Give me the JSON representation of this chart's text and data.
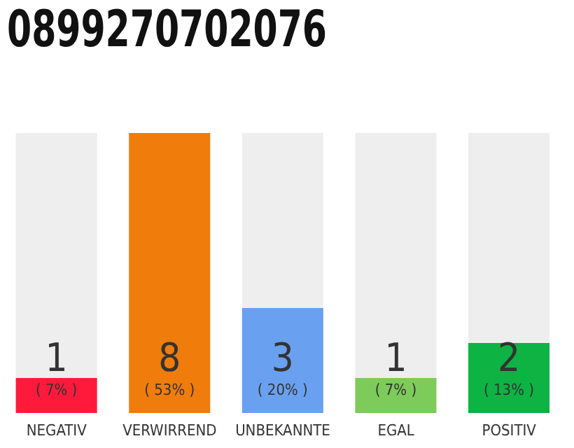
{
  "chart_data": {
    "type": "bar",
    "title": "0899270702076",
    "categories": [
      "NEGATIV",
      "VERWIRREND",
      "UNBEKANNTE",
      "EGAL",
      "POSITIV"
    ],
    "values": [
      1,
      8,
      3,
      1,
      2
    ],
    "colors": [
      "#ff1a3c",
      "#f07c0c",
      "#6aa0f0",
      "#7dcb5a",
      "#0db343"
    ],
    "data_labels": true,
    "annotations": [
      "( 7% )",
      "( 53% )",
      "( 20% )",
      "( 7% )",
      "( 13% )"
    ]
  }
}
